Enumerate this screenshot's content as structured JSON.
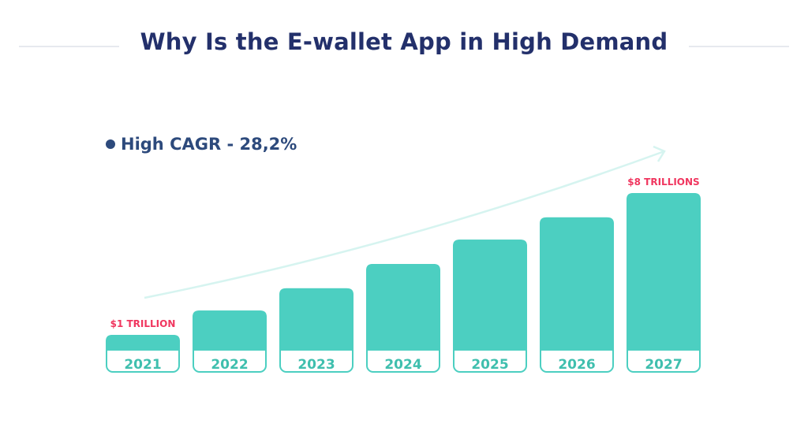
{
  "title": "Why Is the E-wallet App in High Demand",
  "legend": {
    "label": "High CAGR - 28,2%"
  },
  "colors": {
    "title": "#23306b",
    "bar": "#4ccfc1",
    "value_label": "#f0365f",
    "legend": "#2d4a7c",
    "arrow": "#d6f4f0",
    "year_text": "#3fbfae"
  },
  "chart_data": {
    "type": "bar",
    "title": "Why Is the E-wallet App in High Demand",
    "categories": [
      "2021",
      "2022",
      "2023",
      "2024",
      "2025",
      "2026",
      "2027"
    ],
    "values": [
      1,
      2.2,
      3.3,
      4.5,
      5.7,
      6.8,
      8
    ],
    "unit": "trillion USD",
    "data_labels": [
      "$1 TRILLION",
      "",
      "",
      "",
      "",
      "",
      "$8 TRILLIONS"
    ],
    "annotation": "High CAGR - 28,2%",
    "trend_arrow": "rising",
    "grid": false,
    "axes_visible": false
  }
}
